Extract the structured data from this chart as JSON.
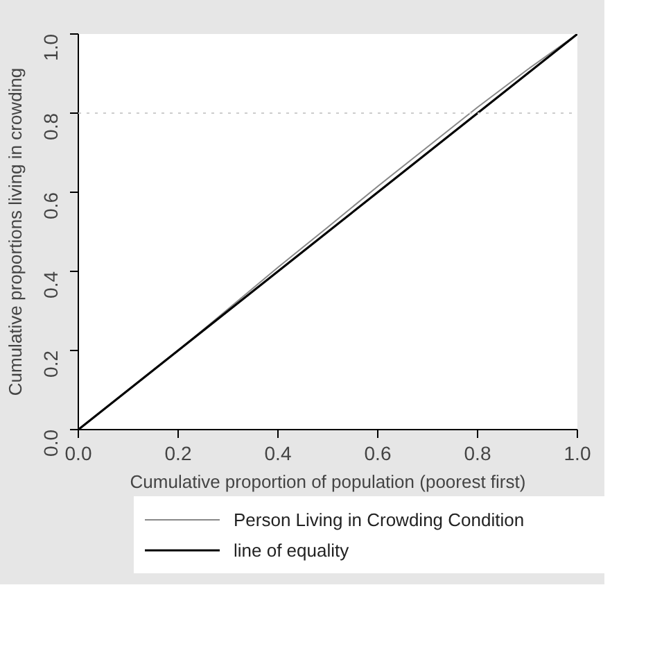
{
  "chart_data": {
    "type": "line",
    "xlabel": "Cumulative proportion of population (poorest first)",
    "ylabel": "Cumulative proportions living in crowding",
    "xlim": [
      0,
      1
    ],
    "ylim": [
      0,
      1
    ],
    "xticks": [
      {
        "value": 0,
        "label": "0.0"
      },
      {
        "value": 0.2,
        "label": "0.2"
      },
      {
        "value": 0.4,
        "label": "0.4"
      },
      {
        "value": 0.6,
        "label": "0.6"
      },
      {
        "value": 0.8,
        "label": "0.8"
      },
      {
        "value": 1,
        "label": "1.0"
      }
    ],
    "yticks": [
      {
        "value": 0,
        "label": "0.0"
      },
      {
        "value": 0.2,
        "label": "0.2"
      },
      {
        "value": 0.4,
        "label": "0.4"
      },
      {
        "value": 0.6,
        "label": "0.6"
      },
      {
        "value": 0.8,
        "label": "0.8"
      },
      {
        "value": 1,
        "label": "1.0"
      }
    ],
    "x": [
      0,
      0.1,
      0.2,
      0.3,
      0.4,
      0.5,
      0.6,
      0.7,
      0.8,
      0.9,
      1
    ],
    "series": [
      {
        "name": "Person Living in Crowding Condition",
        "color": "#888888",
        "values": [
          0,
          0.1,
          0.2,
          0.305,
          0.41,
          0.512,
          0.615,
          0.715,
          0.815,
          0.91,
          1
        ]
      },
      {
        "name": "line of equality",
        "color": "#000000",
        "values": [
          0,
          0.1,
          0.2,
          0.3,
          0.4,
          0.5,
          0.6,
          0.7,
          0.8,
          0.9,
          1
        ]
      }
    ],
    "ref_lines": [
      {
        "axis": "y",
        "value": 0.8,
        "label": null,
        "color": "#cccccc",
        "line_style": "dotted"
      }
    ],
    "legend": "bottom",
    "grid": false,
    "marker": "none",
    "line_style": "solid"
  }
}
